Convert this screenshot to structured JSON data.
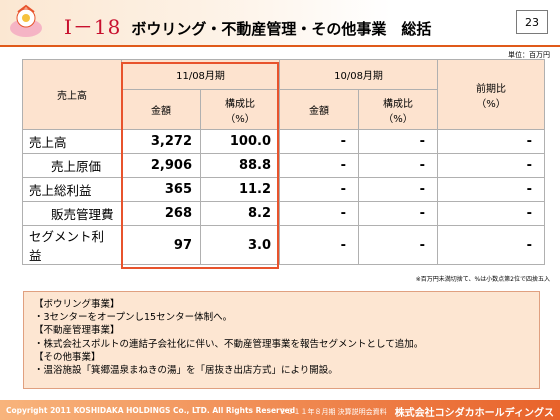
{
  "header": {
    "title_number": "Ⅰ－18",
    "title_text": "ボウリング・不動産管理・その他事業　総括",
    "page_number": "23"
  },
  "unit_label": "単位：百万円",
  "table": {
    "col_item": "売上高",
    "period_current": "11/08月期",
    "period_prior": "10/08月期",
    "col_yoy": "前期比\n（%）",
    "col_amount": "金額",
    "col_ratio": "構成比\n（%）",
    "rows": [
      {
        "label": "売上高",
        "amount": "3,272",
        "ratio": "100.0",
        "prior_amount": "-",
        "prior_ratio": "-",
        "yoy": "-"
      },
      {
        "label": "売上原価",
        "amount": "2,906",
        "ratio": "88.8",
        "prior_amount": "-",
        "prior_ratio": "-",
        "yoy": "-"
      },
      {
        "label": "売上総利益",
        "amount": "365",
        "ratio": "11.2",
        "prior_amount": "-",
        "prior_ratio": "-",
        "yoy": "-"
      },
      {
        "label": "販売管理費",
        "amount": "268",
        "ratio": "8.2",
        "prior_amount": "-",
        "prior_ratio": "-",
        "yoy": "-"
      },
      {
        "label": "セグメント利益",
        "amount": "97",
        "ratio": "3.0",
        "prior_amount": "-",
        "prior_ratio": "-",
        "yoy": "-"
      }
    ]
  },
  "footnote": "※百万円未満切捨て、%は小数点第2位で四捨五入",
  "notes": [
    "【ボウリング事業】",
    "・3センターをオープンし15センター体制へ。",
    "【不動産管理事業】",
    "・株式会社スポルトの連結子会社化に伴い、不動産管理事業を報告セグメントとして追加。",
    "【その他事業】",
    "・温浴施設「箕郷温泉まねきの湯」を「居抜き出店方式」により開設。"
  ],
  "footer": {
    "copyright": "Copyright 2011 KOSHIDAKA HOLDINGS Co., LTD. All Rights Reserved",
    "doc_title": "２０１１年８月期 決算説明会資料",
    "company": "株式会社コシダカホールディングス"
  },
  "colors": {
    "accent": "#e05a1a",
    "highlight_border": "#e8532c",
    "header_fill": "#fde3cf",
    "notes_fill": "#fde6d2"
  },
  "icons": {
    "logo": "company-logo-icon"
  }
}
